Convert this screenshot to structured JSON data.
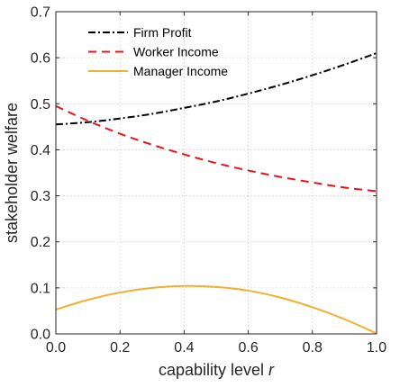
{
  "chart_data": {
    "type": "line",
    "title": "",
    "xlabel_text": "capability level ",
    "xlabel_var": "r",
    "ylabel": "stakeholder welfare",
    "xlim": [
      0,
      1
    ],
    "ylim": [
      0,
      0.7
    ],
    "x_ticks": [
      "0.0",
      "0.2",
      "0.4",
      "0.6",
      "0.8",
      "1.0"
    ],
    "y_ticks": [
      "0.0",
      "0.1",
      "0.2",
      "0.3",
      "0.4",
      "0.5",
      "0.6",
      "0.7"
    ],
    "grid": true,
    "legend_position": "top-left",
    "series": [
      {
        "name": "Firm Profit",
        "color": "#000000",
        "dash": "dash-dot",
        "x": [
          0.0,
          0.1,
          0.2,
          0.3,
          0.4,
          0.5,
          0.6,
          0.7,
          0.8,
          0.9,
          1.0
        ],
        "y": [
          0.455,
          0.46,
          0.468,
          0.478,
          0.491,
          0.505,
          0.522,
          0.541,
          0.562,
          0.585,
          0.61
        ]
      },
      {
        "name": "Worker Income",
        "color": "#e8141c",
        "dash": "dashed",
        "x": [
          0.0,
          0.1,
          0.2,
          0.3,
          0.4,
          0.5,
          0.6,
          0.7,
          0.8,
          0.9,
          1.0
        ],
        "y": [
          0.495,
          0.463,
          0.435,
          0.411,
          0.39,
          0.371,
          0.355,
          0.341,
          0.329,
          0.318,
          0.31
        ]
      },
      {
        "name": "Manager Income",
        "color": "#f0b030",
        "dash": "solid",
        "x": [
          0.0,
          0.1,
          0.2,
          0.3,
          0.4,
          0.5,
          0.6,
          0.7,
          0.8,
          0.9,
          1.0
        ],
        "y": [
          0.053,
          0.074,
          0.09,
          0.1,
          0.104,
          0.102,
          0.094,
          0.079,
          0.058,
          0.032,
          0.001
        ]
      }
    ]
  }
}
